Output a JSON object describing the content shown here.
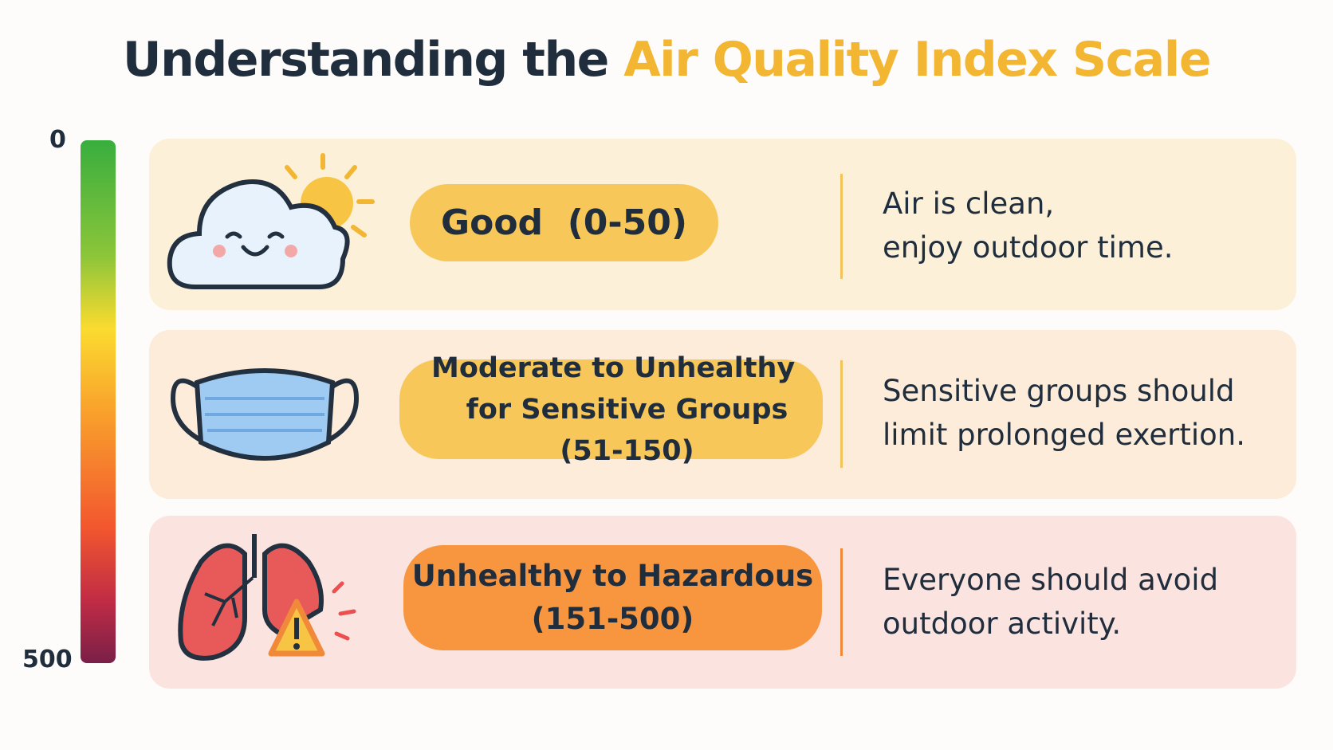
{
  "header": {
    "title_start": "Understanding the",
    "title_highlight": "Air Quality Index Scale"
  },
  "scale": {
    "top_label": "0",
    "bottom_label": "500"
  },
  "rows": [
    {
      "label": [
        "Good"
      ],
      "range": "(0-50)",
      "description": [
        "Air is clean,",
        "enjoy outdoor time."
      ]
    },
    {
      "label": [
        "Moderate to Unhealthy",
        "for Sensitive Groups"
      ],
      "range": "(51-150)",
      "description": [
        "Sensitive groups should",
        "limit prolonged exertion."
      ]
    },
    {
      "label": [
        "Unhealthy to Hazardous"
      ],
      "range": "(151-500)",
      "description": [
        "Everyone should avoid",
        "outdoor activity."
      ]
    }
  ]
}
